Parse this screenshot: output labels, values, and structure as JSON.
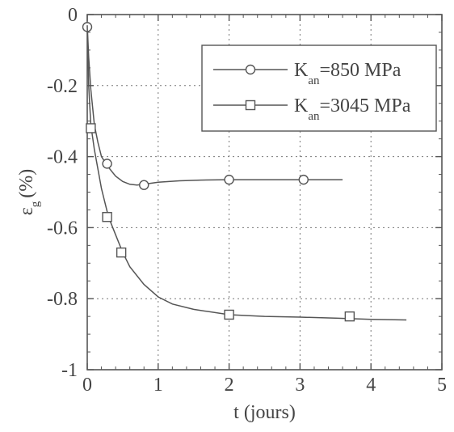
{
  "chart_data": {
    "type": "line",
    "xlabel": "t (jours)",
    "ylabel": {
      "symbol": "ε",
      "subscript": "g",
      "unit": "(%)"
    },
    "xlim": [
      0,
      5
    ],
    "ylim": [
      -1,
      0
    ],
    "x_ticks": [
      "0",
      "1",
      "2",
      "3",
      "4",
      "5"
    ],
    "y_ticks": [
      "0",
      "-0.2",
      "-0.4",
      "-0.6",
      "-0.8",
      "-1"
    ],
    "grid": true,
    "legend_position": "top-right",
    "series": [
      {
        "name": {
          "symbol": "K",
          "subscript": "an",
          "value": "=850 MPa"
        },
        "marker": "circle",
        "x": [
          0,
          0.02,
          0.05,
          0.1,
          0.15,
          0.2,
          0.3,
          0.4,
          0.5,
          0.6,
          0.7,
          0.8,
          1.0,
          1.3,
          1.6,
          2.0,
          2.5,
          3.0,
          3.6
        ],
        "y": [
          -0.03,
          -0.12,
          -0.21,
          -0.31,
          -0.36,
          -0.4,
          -0.43,
          -0.455,
          -0.47,
          -0.478,
          -0.48,
          -0.478,
          -0.472,
          -0.468,
          -0.466,
          -0.465,
          -0.465,
          -0.465,
          -0.465
        ],
        "markers_x": [
          0,
          0.28,
          0.8,
          2.0,
          3.05
        ],
        "markers_y": [
          -0.035,
          -0.42,
          -0.48,
          -0.465,
          -0.465
        ]
      },
      {
        "name": {
          "symbol": "K",
          "subscript": "an",
          "value": "=3045 MPa"
        },
        "marker": "square",
        "x": [
          0,
          0.02,
          0.05,
          0.1,
          0.2,
          0.3,
          0.4,
          0.5,
          0.6,
          0.8,
          1.0,
          1.2,
          1.5,
          2.0,
          2.5,
          3.0,
          3.5,
          4.0,
          4.5
        ],
        "y": [
          -0.03,
          -0.2,
          -0.31,
          -0.38,
          -0.49,
          -0.57,
          -0.62,
          -0.67,
          -0.71,
          -0.76,
          -0.795,
          -0.815,
          -0.83,
          -0.845,
          -0.85,
          -0.852,
          -0.855,
          -0.858,
          -0.86
        ],
        "markers_x": [
          0.05,
          0.28,
          0.48,
          2.0,
          3.7
        ],
        "markers_y": [
          -0.32,
          -0.57,
          -0.67,
          -0.845,
          -0.85
        ]
      }
    ]
  }
}
